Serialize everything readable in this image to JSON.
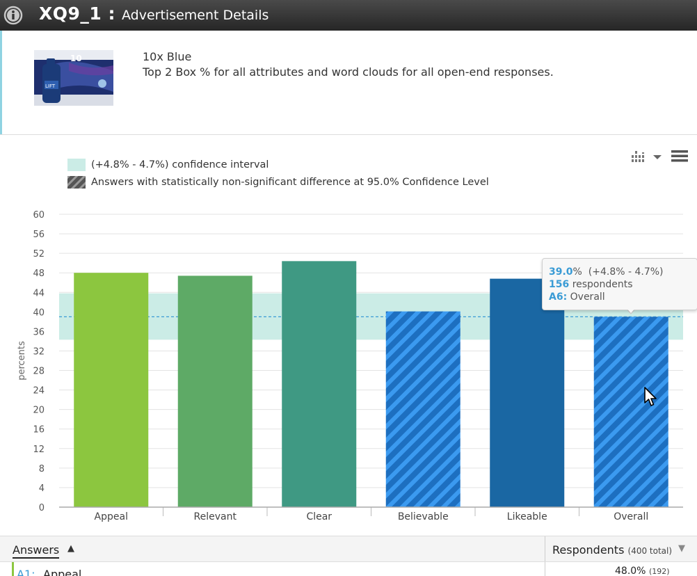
{
  "window": {
    "id": "XQ9_1 :",
    "title": "Advertisement Details"
  },
  "ad": {
    "name": "10x Blue",
    "description": "Top 2 Box % for all attributes and word clouds for all open-end responses."
  },
  "legend": {
    "ci_label": "(+4.8% - 4.7%) confidence interval",
    "nonsig_label": "Answers with statistically non-significant difference at 95.0% Confidence Level"
  },
  "colors": {
    "ci_band": "#cbece6",
    "ci_line": "#3a9bd5",
    "hatch_base": "#1d6fc0",
    "hatch_stripe": "#3b9af0",
    "accent": "#3a9bd5"
  },
  "chart_data": {
    "type": "bar",
    "categories": [
      "Appeal",
      "Relevant",
      "Clear",
      "Believable",
      "Likeable",
      "Overall"
    ],
    "values": [
      48.0,
      47.4,
      50.4,
      40.1,
      46.8,
      39.0
    ],
    "colors": [
      "#8cc63f",
      "#5eaa66",
      "#3f9983",
      "#1d6fc0",
      "#1a67a3",
      "#1d6fc0"
    ],
    "non_significant": [
      false,
      false,
      false,
      true,
      false,
      true
    ],
    "ylabel": "percents",
    "xlabel": "",
    "ylim": [
      0,
      60
    ],
    "yticks": [
      0,
      4,
      8,
      12,
      16,
      20,
      24,
      28,
      32,
      36,
      40,
      44,
      48,
      52,
      56,
      60
    ],
    "confidence_interval": {
      "center": 39.0,
      "low": 34.3,
      "high": 43.8
    },
    "grid": true,
    "legend_position": "top-left"
  },
  "tooltip": {
    "value": "39.0",
    "value_suffix": "%",
    "interval": "(+4.8% - 4.7%)",
    "respondents_count": "156",
    "respondents_label": "respondents",
    "answer_code": "A6:",
    "answer_label": "Overall"
  },
  "table": {
    "col_answers": "Answers",
    "sort_up": "▲",
    "col_respondents": "Respondents",
    "respondents_total": "(400 total)",
    "sort_down": "▼",
    "rows": [
      {
        "code": "A1:",
        "label": "Appeal",
        "value": "48.0%",
        "count": "(192)"
      }
    ]
  }
}
